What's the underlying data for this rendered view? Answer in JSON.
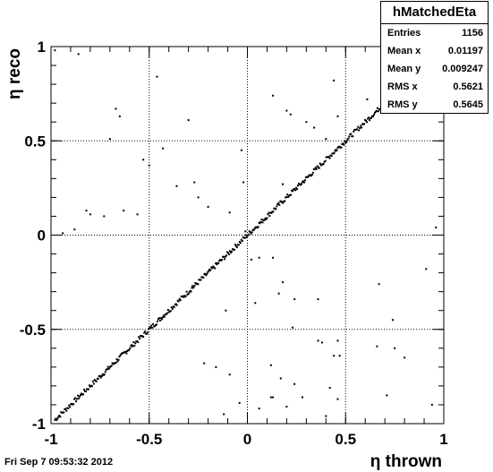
{
  "chart_data": {
    "type": "scatter",
    "title": "",
    "xlabel": "η thrown",
    "ylabel": "η reco",
    "xlim": [
      -1,
      1
    ],
    "ylim": [
      -1,
      1
    ],
    "grid": true,
    "x_ticks": [
      "-1",
      "-0.5",
      "0",
      "0.5",
      "1"
    ],
    "y_ticks": [
      "-1",
      "-0.5",
      "0",
      "0.5",
      "1"
    ],
    "series": [
      {
        "points": [
          [
            -0.98,
            0.98
          ],
          [
            -0.86,
            0.96
          ],
          [
            -0.82,
            0.13
          ],
          [
            -0.8,
            0.11
          ],
          [
            -0.73,
            0.1
          ],
          [
            -0.7,
            0.51
          ],
          [
            -0.67,
            0.67
          ],
          [
            -0.63,
            0.13
          ],
          [
            -0.56,
            0.11
          ],
          [
            -0.53,
            0.4
          ],
          [
            -0.5,
            0.37
          ],
          [
            -0.46,
            0.84
          ],
          [
            -0.43,
            0.46
          ],
          [
            -0.36,
            0.26
          ],
          [
            -0.3,
            0.61
          ],
          [
            -0.27,
            0.28
          ],
          [
            -0.25,
            0.2
          ],
          [
            -0.2,
            0.15
          ],
          [
            -0.09,
            0.12
          ],
          [
            -0.03,
            0.45
          ],
          [
            -0.01,
            0.02
          ],
          [
            -0.94,
            0.01
          ],
          [
            0.13,
            0.74
          ],
          [
            0.2,
            0.66
          ],
          [
            0.22,
            0.64
          ],
          [
            0.18,
            0.27
          ],
          [
            0.3,
            0.6
          ],
          [
            0.34,
            0.57
          ],
          [
            0.4,
            0.51
          ],
          [
            0.44,
            0.82
          ],
          [
            0.46,
            0.63
          ],
          [
            -0.02,
            0.28
          ],
          [
            0.06,
            -0.12
          ],
          [
            0.13,
            -0.12
          ],
          [
            0.02,
            -0.13
          ],
          [
            0.18,
            -0.25
          ],
          [
            0.04,
            -0.36
          ],
          [
            0.16,
            -0.31
          ],
          [
            0.24,
            -0.34
          ],
          [
            0.36,
            -0.34
          ],
          [
            0.23,
            -0.49
          ],
          [
            0.36,
            -0.56
          ],
          [
            0.38,
            -0.57
          ],
          [
            0.44,
            -0.64
          ],
          [
            0.46,
            -0.56
          ],
          [
            0.47,
            -0.64
          ],
          [
            0.74,
            -0.45
          ],
          [
            0.66,
            -0.59
          ],
          [
            0.75,
            -0.6
          ],
          [
            0.8,
            -0.65
          ],
          [
            0.91,
            -0.18
          ],
          [
            0.96,
            0.04
          ],
          [
            0.71,
            -0.85
          ],
          [
            0.94,
            -0.9
          ],
          [
            0.46,
            -0.87
          ],
          [
            0.42,
            -0.81
          ],
          [
            0.28,
            -0.86
          ],
          [
            0.24,
            -0.79
          ],
          [
            0.12,
            -0.86
          ],
          [
            0.13,
            -0.86
          ],
          [
            0.06,
            -0.92
          ],
          [
            -0.12,
            -0.95
          ],
          [
            -0.04,
            -0.89
          ],
          [
            -0.09,
            -0.74
          ],
          [
            0.4,
            -0.96
          ],
          [
            0.12,
            -0.69
          ],
          [
            0.2,
            -0.91
          ],
          [
            -0.28,
            -0.27
          ],
          [
            -0.11,
            -0.4
          ],
          [
            -0.22,
            -0.68
          ],
          [
            -0.16,
            -0.7
          ],
          [
            0.61,
            0.72
          ],
          [
            0.67,
            -0.26
          ],
          [
            -0.88,
            0.03
          ],
          [
            0.17,
            -0.76
          ],
          [
            -0.65,
            0.63
          ]
        ]
      }
    ],
    "diagonal_band": {
      "x_start": -0.98,
      "x_end": 0.78,
      "y_offset": 0
    }
  },
  "stats_box": {
    "title": "hMatchedEta",
    "rows": [
      {
        "label": "Entries",
        "value": "1156"
      },
      {
        "label": "Mean x",
        "value": "0.01197"
      },
      {
        "label": "Mean y",
        "value": "0.009247"
      },
      {
        "label": "RMS x",
        "value": "0.5621"
      },
      {
        "label": "RMS y",
        "value": "0.5645"
      }
    ]
  },
  "timestamp": "Fri Sep  7 09:53:32 2012"
}
